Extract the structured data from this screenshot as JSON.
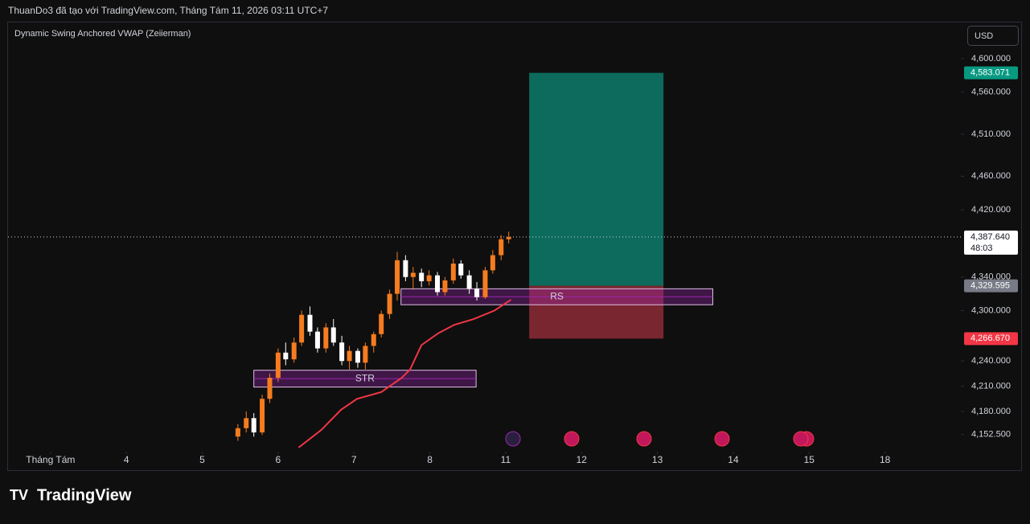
{
  "header": {
    "title": "ThuanDo3 đã tạo với TradingView.com, Tháng Tám 11, 2026 03:11 UTC+7",
    "indicator": "Dynamic Swing Anchored VWAP (Zeiierman)",
    "currency": "USD"
  },
  "footer": {
    "brand": "TradingView"
  },
  "chart_data": {
    "type": "candlestick",
    "ylim": [
      4134,
      4643
    ],
    "xlim": [
      -0.56,
      12
    ],
    "yticks": [
      {
        "value": 4600,
        "label": "4,600.000"
      },
      {
        "value": 4560,
        "label": "4,560.000"
      },
      {
        "value": 4510,
        "label": "4,510.000"
      },
      {
        "value": 4460,
        "label": "4,460.000"
      },
      {
        "value": 4420,
        "label": "4,420.000"
      },
      {
        "value": 4340,
        "label": "4,340.000"
      },
      {
        "value": 4300,
        "label": "4,300.000"
      },
      {
        "value": 4240,
        "label": "4,240.000"
      },
      {
        "value": 4210,
        "label": "4,210.000"
      },
      {
        "value": 4180,
        "label": "4,180.000"
      },
      {
        "value": 4152.5,
        "label": "4,152.500"
      }
    ],
    "xticks": [
      {
        "value": 0,
        "label": "Tháng Tám"
      },
      {
        "value": 1,
        "label": "4"
      },
      {
        "value": 2,
        "label": "5"
      },
      {
        "value": 3,
        "label": "6"
      },
      {
        "value": 4,
        "label": "7"
      },
      {
        "value": 5,
        "label": "8"
      },
      {
        "value": 6,
        "label": "11"
      },
      {
        "value": 7,
        "label": "12"
      },
      {
        "value": 8,
        "label": "13"
      },
      {
        "value": 9,
        "label": "14"
      },
      {
        "value": 10,
        "label": "15"
      },
      {
        "value": 11,
        "label": "18"
      }
    ],
    "up_color": "#f57c1f",
    "down_color": "#ffffff",
    "x": [
      2.47,
      2.58,
      2.68,
      2.79,
      2.89,
      3.0,
      3.1,
      3.21,
      3.31,
      3.42,
      3.52,
      3.63,
      3.73,
      3.84,
      3.94,
      4.05,
      4.15,
      4.26,
      4.36,
      4.47,
      4.57,
      4.68,
      4.78,
      4.89,
      4.99,
      5.1,
      5.2,
      5.31,
      5.41,
      5.52,
      5.62,
      5.73,
      5.83,
      5.94,
      6.04
    ],
    "open": [
      4150,
      4160,
      4172,
      4155,
      4195,
      4220,
      4250,
      4242,
      4262,
      4295,
      4275,
      4255,
      4280,
      4262,
      4240,
      4252,
      4238,
      4258,
      4272,
      4296,
      4320,
      4360,
      4340,
      4345,
      4335,
      4342,
      4322,
      4336,
      4356,
      4342,
      4326,
      4316,
      4348,
      4366,
      4385
    ],
    "high": [
      4165,
      4180,
      4178,
      4200,
      4225,
      4255,
      4262,
      4268,
      4300,
      4305,
      4280,
      4285,
      4290,
      4270,
      4258,
      4255,
      4262,
      4275,
      4300,
      4325,
      4370,
      4366,
      4352,
      4350,
      4348,
      4346,
      4340,
      4362,
      4360,
      4348,
      4334,
      4352,
      4372,
      4390,
      4394
    ],
    "low": [
      4145,
      4155,
      4150,
      4152,
      4190,
      4215,
      4235,
      4238,
      4258,
      4270,
      4250,
      4250,
      4258,
      4235,
      4230,
      4232,
      4230,
      4250,
      4268,
      4290,
      4312,
      4335,
      4325,
      4328,
      4330,
      4318,
      4318,
      4332,
      4338,
      4320,
      4312,
      4314,
      4344,
      4360,
      4380
    ],
    "close": [
      4160,
      4172,
      4155,
      4195,
      4220,
      4250,
      4242,
      4262,
      4295,
      4275,
      4255,
      4280,
      4262,
      4240,
      4252,
      4238,
      4258,
      4272,
      4296,
      4320,
      4360,
      4340,
      4345,
      4335,
      4342,
      4322,
      4336,
      4356,
      4342,
      4326,
      4316,
      4348,
      4366,
      4385,
      4387.64
    ],
    "vwap": {
      "color": "#f23645",
      "x": [
        3.27,
        3.57,
        3.83,
        4.04,
        4.36,
        4.63,
        4.74,
        4.89,
        5.11,
        5.32,
        5.58,
        5.85,
        6.07
      ],
      "values": [
        4137,
        4158,
        4182,
        4195,
        4203,
        4220,
        4230,
        4259,
        4273,
        4283,
        4290,
        4300,
        4313
      ]
    },
    "zones": [
      {
        "label": "STR",
        "x": [
          2.68,
          5.61
        ],
        "values": [
          4229,
          4209
        ]
      },
      {
        "label": "RS",
        "x": [
          4.62,
          8.73
        ],
        "values": [
          4326,
          4307
        ]
      }
    ],
    "position": {
      "x": [
        6.31,
        8.08
      ],
      "target": {
        "value": 4583.071,
        "label": "4,583.071"
      },
      "entry": {
        "value": 4329.595,
        "label": "4,329.595"
      },
      "stop": {
        "value": 4266.67,
        "label": "4,266.670"
      }
    },
    "last_price": {
      "value": 4387.64,
      "label": "4,387.640",
      "countdown": "48:03"
    }
  }
}
